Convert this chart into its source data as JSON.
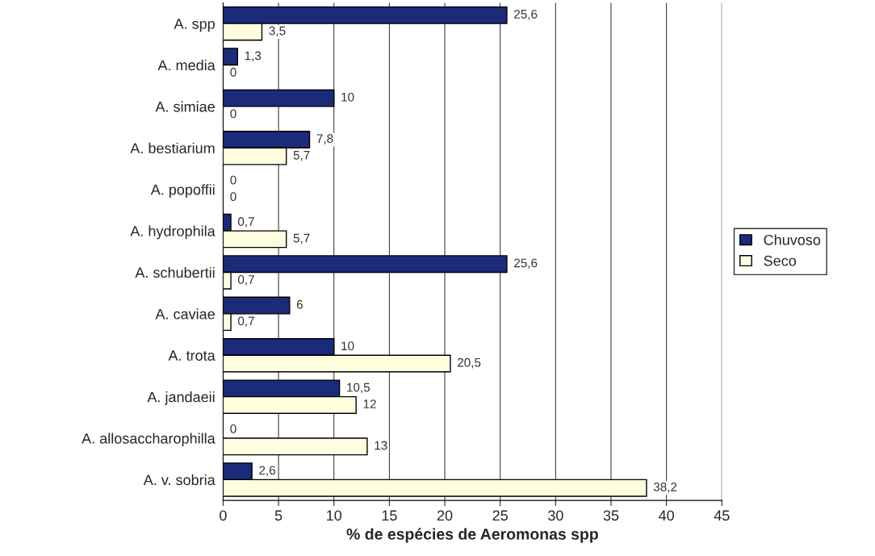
{
  "chart_data": {
    "type": "bar",
    "orientation": "horizontal",
    "xlabel": "% de espécies de Aeromonas spp",
    "categories": [
      "A. spp",
      "A. media",
      "A. simiae",
      "A. bestiarium",
      "A. popoffii",
      "A. hydrophila",
      "A. schubertii",
      "A. caviae",
      "A. trota",
      "A. jandaeii",
      "A. allosaccharophilla",
      "A. v. sobria"
    ],
    "series": [
      {
        "name": "Chuvoso",
        "color": "#1c2a7a",
        "values": [
          25.6,
          1.3,
          10,
          7.8,
          0,
          0.7,
          25.6,
          6,
          10,
          10.5,
          0,
          2.6
        ],
        "value_labels": [
          "25,6",
          "1,3",
          "10",
          "7,8",
          "0",
          "0,7",
          "25,6",
          "6",
          "10",
          "10,5",
          "0",
          "2,6"
        ]
      },
      {
        "name": "Seco",
        "color": "#ffffe0",
        "values": [
          3.5,
          0,
          0,
          5.7,
          0,
          5.7,
          0.7,
          0.7,
          20.5,
          12,
          13,
          38.2
        ],
        "value_labels": [
          "3,5",
          "0",
          "0",
          "5,7",
          "0",
          "5,7",
          "0,7",
          "0,7",
          "20,5",
          "12",
          "13",
          "38,2"
        ]
      }
    ],
    "xlim": [
      0,
      45
    ],
    "xticks": [
      0,
      5,
      10,
      15,
      20,
      25,
      30,
      35,
      40,
      45
    ],
    "grid": "x",
    "legend": "right"
  }
}
